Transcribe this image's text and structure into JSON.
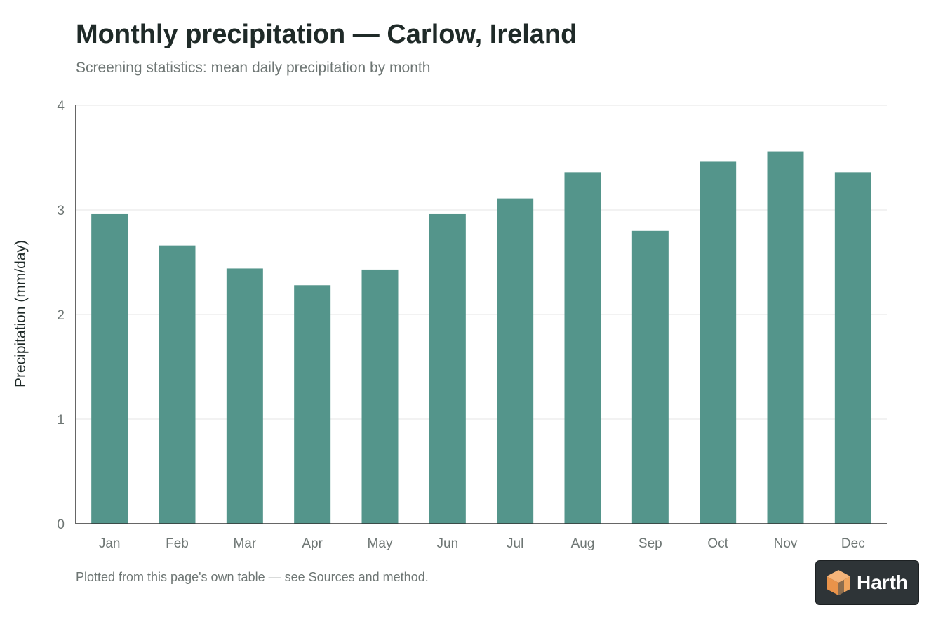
{
  "title": "Monthly precipitation — Carlow, Ireland",
  "subtitle": "Screening statistics: mean daily precipitation by month",
  "footnote": "Plotted from this page's own table — see Sources and method.",
  "logo": {
    "text": "Harth",
    "icon": "cube-logo-icon"
  },
  "colors": {
    "bar": "#54958b",
    "title": "#1f2a28",
    "muted": "#6e7674",
    "grid": "#e6e6e6",
    "axis": "#333333"
  },
  "chart_data": {
    "type": "bar",
    "title": "Monthly precipitation — Carlow, Ireland",
    "subtitle": "Screening statistics: mean daily precipitation by month",
    "xlabel": "",
    "ylabel": "Precipitation (mm/day)",
    "categories": [
      "Jan",
      "Feb",
      "Mar",
      "Apr",
      "May",
      "Jun",
      "Jul",
      "Aug",
      "Sep",
      "Oct",
      "Nov",
      "Dec"
    ],
    "values": [
      2.96,
      2.66,
      2.44,
      2.28,
      2.43,
      2.96,
      3.11,
      3.36,
      2.8,
      3.46,
      3.56,
      3.36
    ],
    "ylim": [
      0,
      4
    ],
    "yticks": [
      "0",
      "1",
      "2",
      "3",
      "4"
    ],
    "grid": true,
    "legend": "none"
  }
}
